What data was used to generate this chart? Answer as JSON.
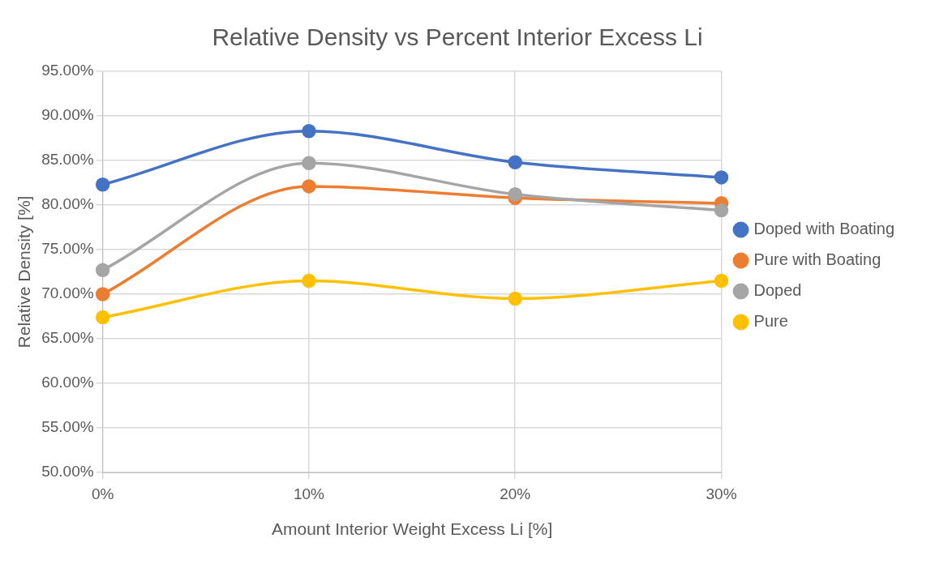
{
  "chart_data": {
    "type": "line",
    "title": "Relative Density vs Percent Interior Excess Li",
    "xlabel": "Amount Interior Weight Excess Li [%]",
    "ylabel": "Relative Density [%]",
    "categories": [
      "0%",
      "10%",
      "20%",
      "30%"
    ],
    "series": [
      {
        "name": "Doped with Boating",
        "color": "#4472c4",
        "values": [
          82.3,
          88.3,
          84.8,
          83.1
        ]
      },
      {
        "name": "Pure with Boating",
        "color": "#ed7d31",
        "values": [
          70.0,
          82.1,
          80.8,
          80.2
        ]
      },
      {
        "name": "Doped",
        "color": "#a5a5a5",
        "values": [
          72.7,
          84.7,
          81.2,
          79.4
        ]
      },
      {
        "name": "Pure",
        "color": "#ffc000",
        "values": [
          67.4,
          71.5,
          69.5,
          71.5
        ]
      }
    ],
    "ylim": [
      50,
      95
    ],
    "yticks": [
      {
        "value": 50,
        "label": "50.00%"
      },
      {
        "value": 55,
        "label": "55.00%"
      },
      {
        "value": 60,
        "label": "60.00%"
      },
      {
        "value": 65,
        "label": "65.00%"
      },
      {
        "value": 70,
        "label": "70.00%"
      },
      {
        "value": 75,
        "label": "75.00%"
      },
      {
        "value": 80,
        "label": "80.00%"
      },
      {
        "value": 85,
        "label": "85.00%"
      },
      {
        "value": 90,
        "label": "90.00%"
      },
      {
        "value": 95,
        "label": "95.00%"
      }
    ],
    "grid": true,
    "legend": "right",
    "marker": "circle",
    "line_style": "solid"
  }
}
